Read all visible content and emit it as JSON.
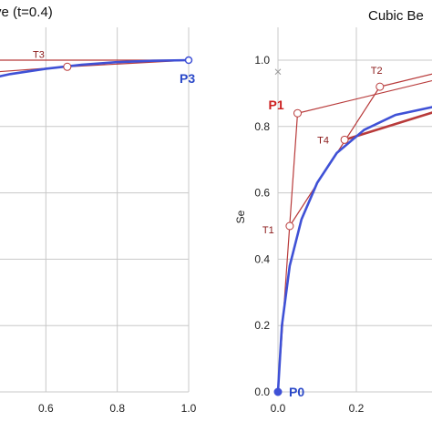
{
  "colors": {
    "curve": "#3f51d6",
    "control": "#b83a3a",
    "grid": "#c8c8c8",
    "point_label_red": "#cc1f1f",
    "point_label_blue": "#2a48c8"
  },
  "chart_data": [
    {
      "type": "line",
      "title": "ve (t=0.4)",
      "xlim": [
        0.4,
        1.0
      ],
      "ylim": [
        0.0,
        1.1
      ],
      "x_ticks": [
        "0.6",
        "0.8",
        "1.0"
      ],
      "grid": true,
      "point_labels": [
        {
          "text": "P3",
          "x": 1.0,
          "y": 1.0,
          "color": "blue"
        }
      ],
      "t_labels": [
        {
          "text": "T3",
          "x": 0.64,
          "y": 0.98
        }
      ],
      "control_polyline": [
        {
          "x": 0.4,
          "y": 1.0
        },
        {
          "x": 1.0,
          "y": 1.0
        }
      ],
      "control_polyline_2": [
        {
          "x": 0.4,
          "y": 0.96
        },
        {
          "x": 0.66,
          "y": 0.98
        },
        {
          "x": 1.0,
          "y": 1.0
        }
      ],
      "curve": [
        {
          "x": 0.4,
          "y": 0.935
        },
        {
          "x": 0.5,
          "y": 0.958
        },
        {
          "x": 0.6,
          "y": 0.974
        },
        {
          "x": 0.7,
          "y": 0.986
        },
        {
          "x": 0.8,
          "y": 0.994
        },
        {
          "x": 0.9,
          "y": 0.998
        },
        {
          "x": 1.0,
          "y": 1.0
        }
      ],
      "circle_points": [
        {
          "x": 0.66,
          "y": 0.98
        }
      ]
    },
    {
      "type": "line",
      "title": "Cubic Be",
      "xlim": [
        0.0,
        0.47
      ],
      "ylim": [
        0.0,
        1.1
      ],
      "ylabel": "Se",
      "x_ticks": [
        "0.0",
        "0.2"
      ],
      "y_ticks": [
        "0.0",
        "0.2",
        "0.4",
        "0.6",
        "0.8",
        "1.0"
      ],
      "grid": true,
      "point_labels": [
        {
          "text": "P1",
          "x": 0.05,
          "y": 0.84,
          "color": "red"
        },
        {
          "text": "P0",
          "x": 0.0,
          "y": 0.0,
          "color": "blue"
        }
      ],
      "t_labels": [
        {
          "text": "T1",
          "x": 0.03,
          "y": 0.5
        },
        {
          "text": "T2",
          "x": 0.26,
          "y": 0.92
        },
        {
          "text": "T4",
          "x": 0.17,
          "y": 0.76
        }
      ],
      "control_polygon": [
        {
          "x": 0.0,
          "y": 0.0
        },
        {
          "x": 0.05,
          "y": 0.84
        },
        {
          "x": 0.47,
          "y": 0.96
        }
      ],
      "inner_lines": [
        [
          {
            "x": 0.03,
            "y": 0.5
          },
          {
            "x": 0.26,
            "y": 0.92
          }
        ],
        [
          {
            "x": 0.26,
            "y": 0.92
          },
          {
            "x": 0.47,
            "y": 0.98
          }
        ],
        [
          {
            "x": 0.17,
            "y": 0.76
          },
          {
            "x": 0.47,
            "y": 0.87
          }
        ]
      ],
      "curve": [
        {
          "x": 0.0,
          "y": 0.0
        },
        {
          "x": 0.01,
          "y": 0.2
        },
        {
          "x": 0.03,
          "y": 0.38
        },
        {
          "x": 0.06,
          "y": 0.52
        },
        {
          "x": 0.1,
          "y": 0.63
        },
        {
          "x": 0.15,
          "y": 0.72
        },
        {
          "x": 0.22,
          "y": 0.79
        },
        {
          "x": 0.3,
          "y": 0.835
        },
        {
          "x": 0.4,
          "y": 0.86
        },
        {
          "x": 0.47,
          "y": 0.875
        }
      ],
      "circle_points": [
        {
          "x": 0.03,
          "y": 0.5
        },
        {
          "x": 0.05,
          "y": 0.84
        },
        {
          "x": 0.26,
          "y": 0.92
        },
        {
          "x": 0.17,
          "y": 0.76
        }
      ],
      "x_marks": [
        {
          "x": 0.0,
          "y": 0.965
        }
      ]
    }
  ]
}
